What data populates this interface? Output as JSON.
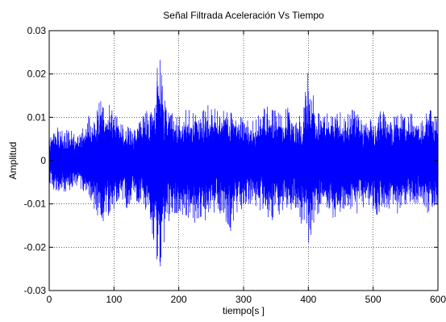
{
  "chart_data": {
    "type": "line",
    "title": "Señal Filtrada Aceleración Vs Tiempo",
    "xlabel": "tiempo[s ]",
    "ylabel": "Amplitud",
    "xlim": [
      0,
      600
    ],
    "ylim": [
      -0.03,
      0.03
    ],
    "x_ticks": [
      0,
      100,
      200,
      300,
      400,
      500,
      600
    ],
    "y_ticks": [
      -0.03,
      -0.02,
      -0.01,
      0,
      0.01,
      0.02,
      0.03
    ],
    "x_tick_labels": [
      "0",
      "100",
      "200",
      "300",
      "400",
      "500",
      "600"
    ],
    "y_tick_labels": [
      "-0.03",
      "-0.02",
      "-0.01",
      "0",
      "0.01",
      "0.02",
      "0.03"
    ],
    "grid": true,
    "series_color": "#0000ff",
    "series": [
      {
        "envelope_x": [
          0,
          10,
          20,
          30,
          40,
          50,
          60,
          70,
          80,
          90,
          100,
          110,
          120,
          130,
          140,
          150,
          160,
          170,
          180,
          190,
          200,
          210,
          220,
          230,
          240,
          250,
          260,
          270,
          280,
          290,
          300,
          310,
          320,
          330,
          340,
          350,
          360,
          370,
          380,
          390,
          400,
          410,
          420,
          430,
          440,
          450,
          460,
          470,
          480,
          490,
          500,
          510,
          520,
          530,
          540,
          550,
          560,
          570,
          580,
          590,
          600
        ],
        "envelope_max": [
          0.006,
          0.008,
          0.007,
          0.008,
          0.006,
          0.007,
          0.011,
          0.009,
          0.016,
          0.014,
          0.012,
          0.009,
          0.008,
          0.007,
          0.011,
          0.012,
          0.012,
          0.026,
          0.014,
          0.011,
          0.01,
          0.012,
          0.013,
          0.01,
          0.012,
          0.014,
          0.012,
          0.013,
          0.012,
          0.011,
          0.01,
          0.009,
          0.01,
          0.012,
          0.013,
          0.012,
          0.011,
          0.013,
          0.012,
          0.01,
          0.022,
          0.013,
          0.012,
          0.011,
          0.01,
          0.012,
          0.011,
          0.012,
          0.01,
          0.011,
          0.009,
          0.012,
          0.011,
          0.01,
          0.012,
          0.011,
          0.012,
          0.01,
          0.011,
          0.013,
          0.009
        ],
        "envelope_min": [
          -0.006,
          -0.007,
          -0.008,
          -0.007,
          -0.006,
          -0.007,
          -0.009,
          -0.012,
          -0.017,
          -0.013,
          -0.012,
          -0.01,
          -0.011,
          -0.009,
          -0.01,
          -0.012,
          -0.018,
          -0.027,
          -0.016,
          -0.013,
          -0.012,
          -0.013,
          -0.015,
          -0.014,
          -0.016,
          -0.014,
          -0.012,
          -0.013,
          -0.017,
          -0.012,
          -0.011,
          -0.01,
          -0.011,
          -0.012,
          -0.015,
          -0.013,
          -0.012,
          -0.014,
          -0.013,
          -0.015,
          -0.02,
          -0.014,
          -0.012,
          -0.013,
          -0.014,
          -0.012,
          -0.011,
          -0.013,
          -0.012,
          -0.011,
          -0.012,
          -0.013,
          -0.012,
          -0.011,
          -0.013,
          -0.012,
          -0.011,
          -0.012,
          -0.013,
          -0.012,
          -0.01
        ]
      }
    ]
  }
}
